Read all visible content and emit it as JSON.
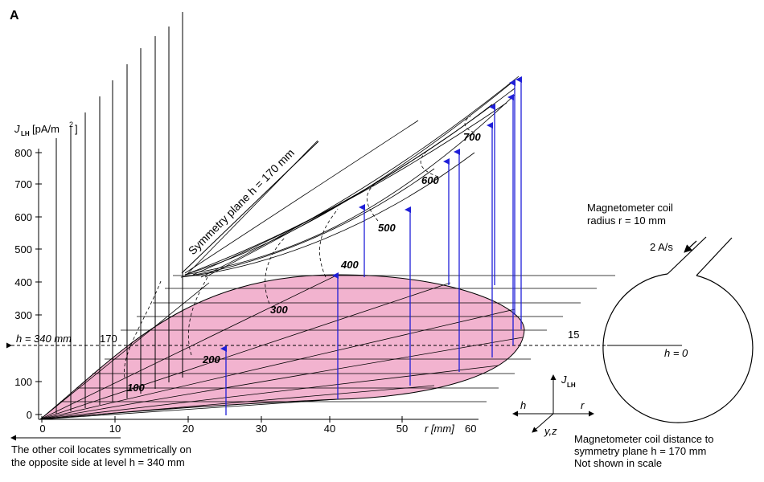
{
  "panel_label": "A",
  "y_axis": {
    "label_main": "J",
    "label_sub": "LH",
    "label_unit": "[pA/m",
    "label_sup": "2",
    "label_close": "]",
    "ticks": [
      "800",
      "700",
      "600",
      "500",
      "400",
      "300",
      "200",
      "100",
      "0"
    ]
  },
  "x_axis": {
    "ticks": [
      "0",
      "10",
      "20",
      "30",
      "40",
      "50"
    ],
    "label": "r [mm]",
    "end_tick": "60"
  },
  "h_labels": {
    "left": "h = 340 mm",
    "mid": "170",
    "right": "15",
    "zero": "h = 0"
  },
  "symmetry_plane_label": "Symmetry plane h = 170 mm",
  "contours": [
    "100",
    "200",
    "300",
    "400",
    "500",
    "600",
    "700"
  ],
  "coil": {
    "title_line1": "Magnetometer coil",
    "title_line2": "radius r = 10 mm",
    "current": "2 A/s"
  },
  "axes_legend": {
    "j": "J",
    "j_sub": "LH",
    "h": "h",
    "r": "r",
    "yz": "y,z"
  },
  "notes": {
    "left_line1": "The other coil locates symmetrically on",
    "left_line2": "the opposite side at level h = 340 mm",
    "right_line1": "Magnetometer coil distance to",
    "right_line2": "symmetry plane h = 170 mm",
    "right_line3": "Not shown in scale"
  },
  "colors": {
    "ellipse_fill": "#f2b3cf",
    "arrow": "#1f1fd8",
    "line": "#000000"
  }
}
